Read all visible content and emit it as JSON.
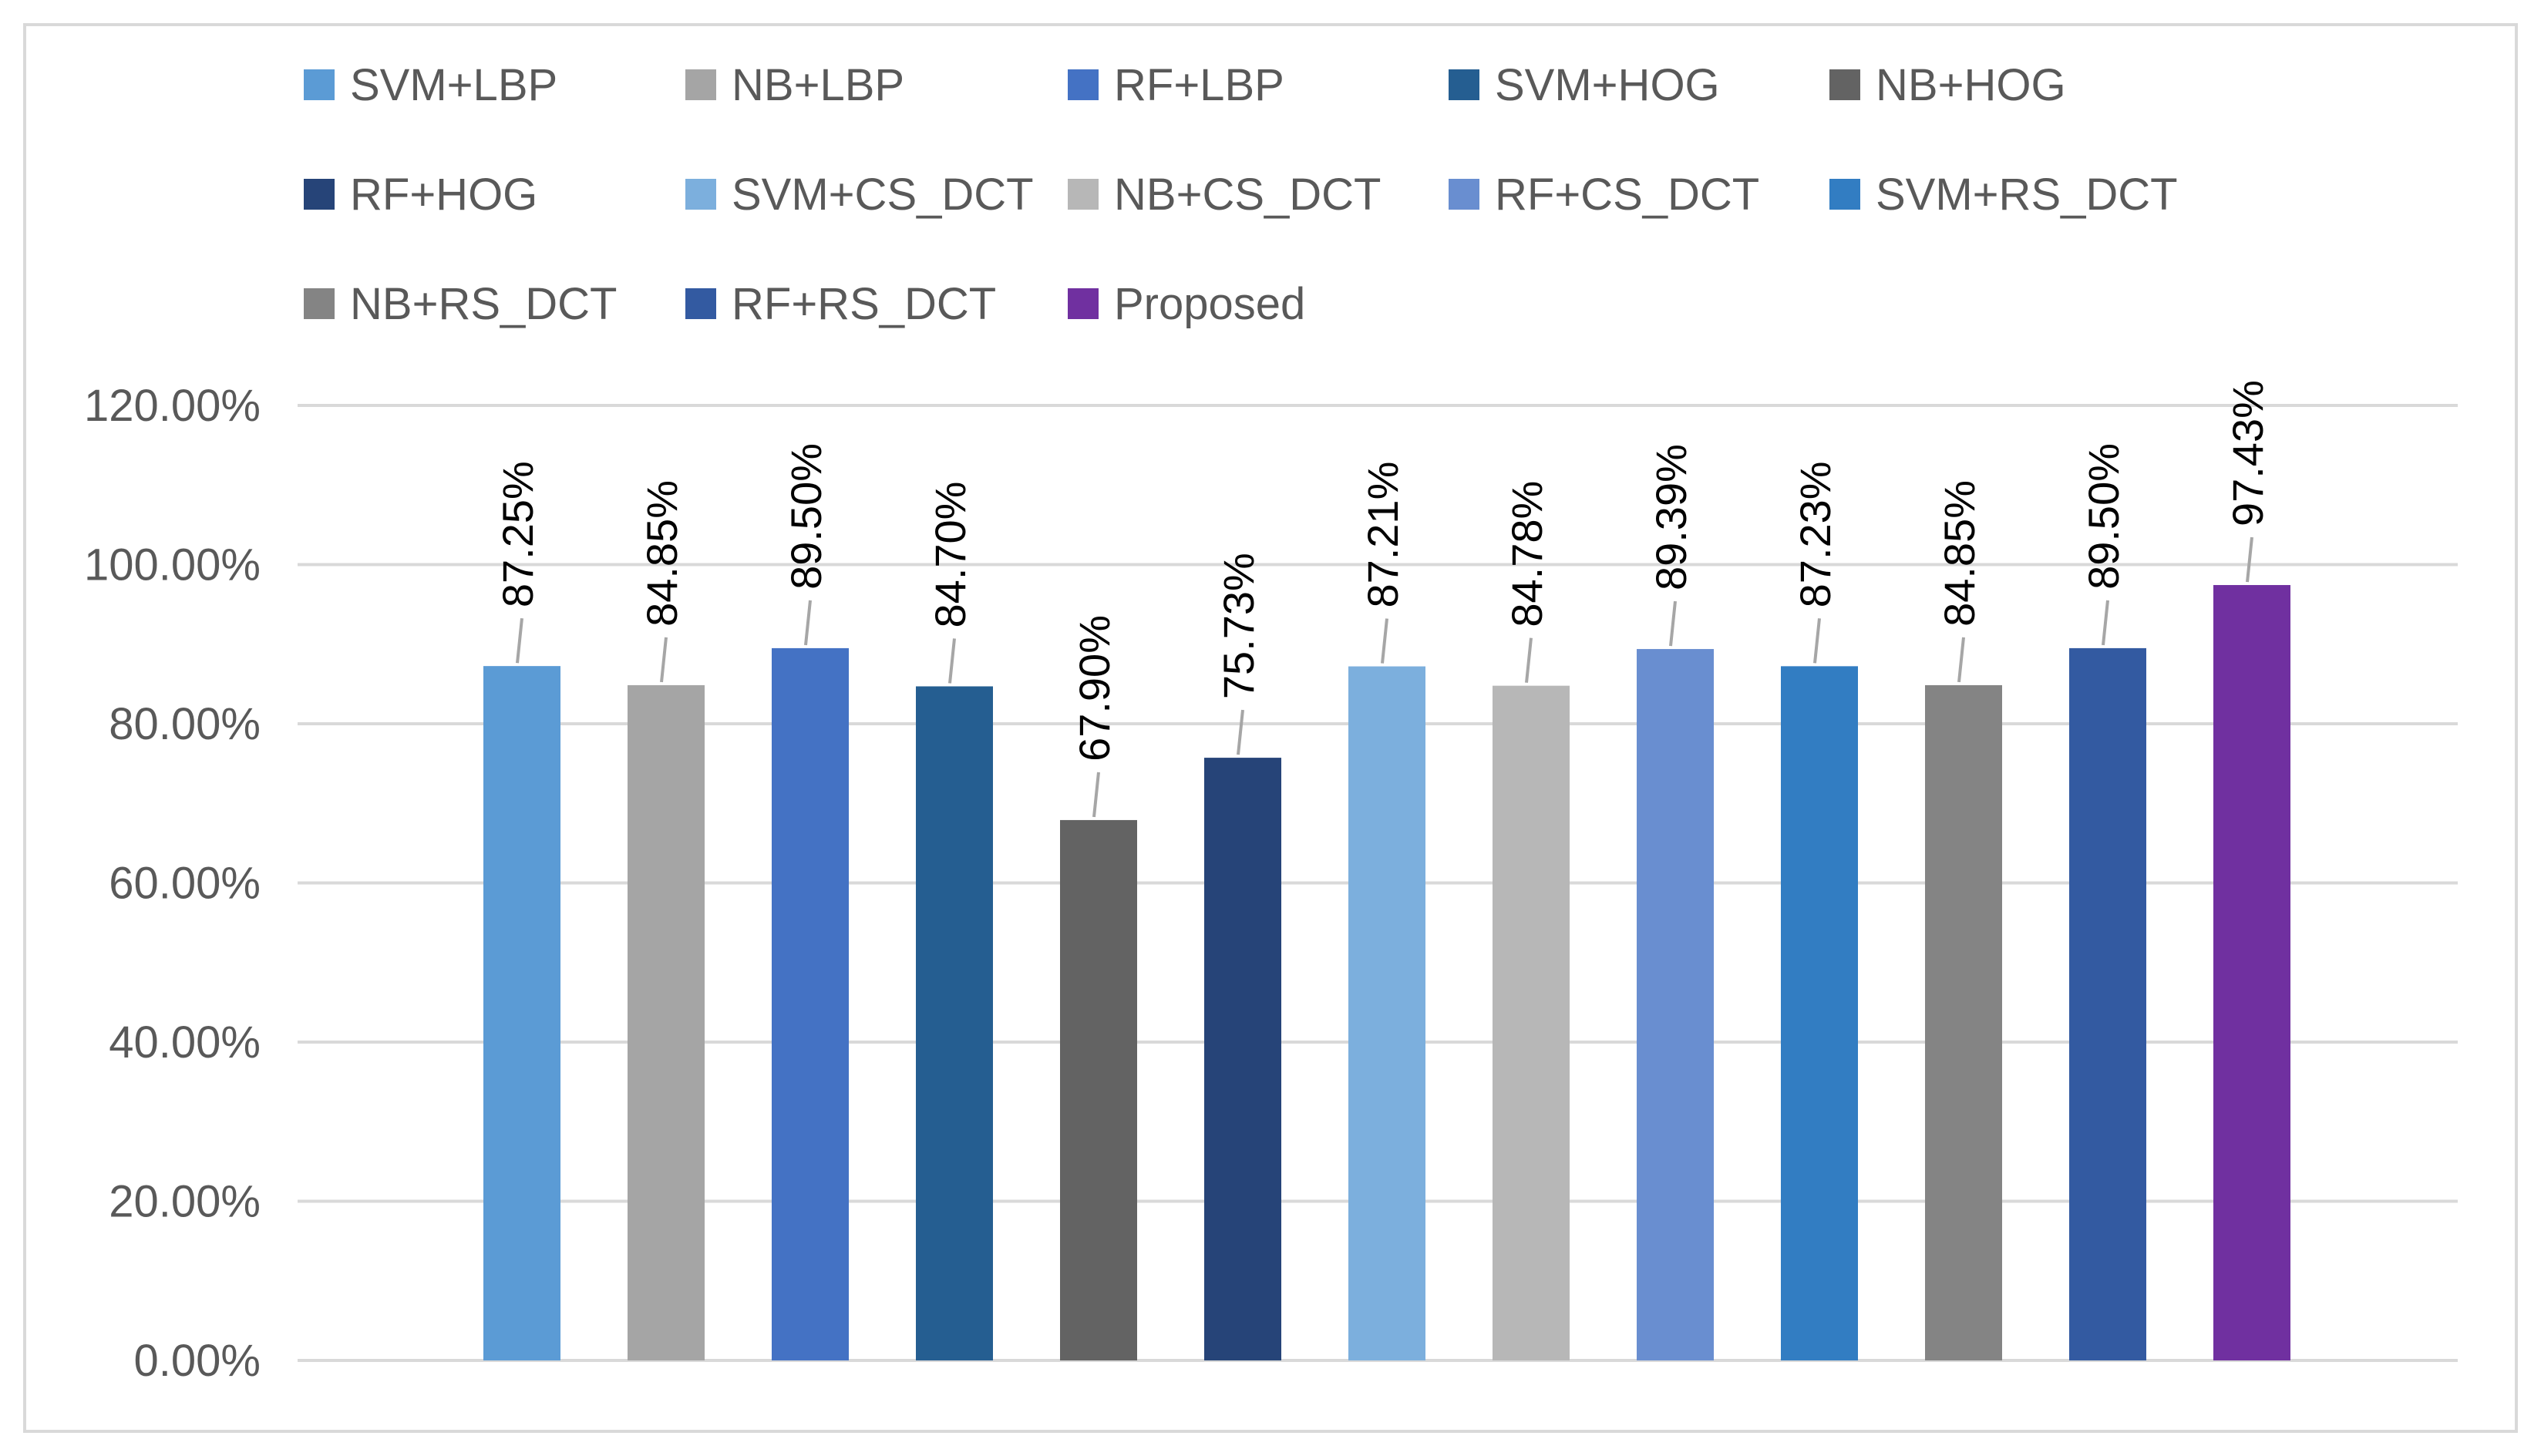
{
  "chart_data": {
    "type": "bar",
    "title": "",
    "xlabel": "",
    "ylabel": "",
    "ylim": [
      0,
      1.2
    ],
    "ytick_step": 0.2,
    "yticks": [
      "0.00%",
      "20.00%",
      "40.00%",
      "60.00%",
      "80.00%",
      "100.00%",
      "120.00%"
    ],
    "grid": true,
    "legend_position": "top",
    "bars": [
      {
        "name": "SVM+LBP",
        "value": 0.8725,
        "label": "87.25%",
        "color": "#5B9BD5"
      },
      {
        "name": "NB+LBP",
        "value": 0.8485,
        "label": "84.85%",
        "color": "#A5A5A5"
      },
      {
        "name": "RF+LBP",
        "value": 0.895,
        "label": "89.50%",
        "color": "#4472C4"
      },
      {
        "name": "SVM+HOG",
        "value": 0.847,
        "label": "84.70%",
        "color": "#255E91"
      },
      {
        "name": "NB+HOG",
        "value": 0.679,
        "label": "67.90%",
        "color": "#636363"
      },
      {
        "name": "RF+HOG",
        "value": 0.7573,
        "label": "75.73%",
        "color": "#264478"
      },
      {
        "name": "SVM+CS_DCT",
        "value": 0.8721,
        "label": "87.21%",
        "color": "#7CAFDD"
      },
      {
        "name": "NB+CS_DCT",
        "value": 0.8478,
        "label": "84.78%",
        "color": "#B7B7B7"
      },
      {
        "name": "RF+CS_DCT",
        "value": 0.8939,
        "label": "89.39%",
        "color": "#698ED0"
      },
      {
        "name": "SVM+RS_DCT",
        "value": 0.8723,
        "label": "87.23%",
        "color": "#327DC2"
      },
      {
        "name": "NB+RS_DCT",
        "value": 0.8485,
        "label": "84.85%",
        "color": "#848484"
      },
      {
        "name": "RF+RS_DCT",
        "value": 0.895,
        "label": "89.50%",
        "color": "#335AA1"
      },
      {
        "name": "Proposed",
        "value": 0.9743,
        "label": "97.43%",
        "color": "#7030A0"
      }
    ]
  }
}
